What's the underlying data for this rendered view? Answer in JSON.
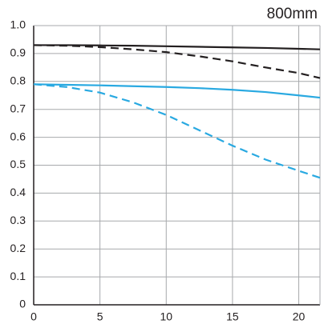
{
  "chart_data": {
    "type": "line",
    "title": "800mm",
    "x": [
      0,
      2.5,
      5,
      7.5,
      10,
      12.5,
      15,
      17.5,
      20,
      21.6
    ],
    "series": [
      {
        "color": "#231f20",
        "dashed": false,
        "values": [
          0.93,
          0.93,
          0.929,
          0.928,
          0.926,
          0.924,
          0.922,
          0.92,
          0.917,
          0.915
        ]
      },
      {
        "color": "#231f20",
        "dashed": true,
        "values": [
          0.93,
          0.928,
          0.923,
          0.915,
          0.905,
          0.89,
          0.872,
          0.85,
          0.83,
          0.812
        ]
      },
      {
        "color": "#29a9e1",
        "dashed": false,
        "values": [
          0.79,
          0.788,
          0.786,
          0.783,
          0.78,
          0.776,
          0.77,
          0.762,
          0.75,
          0.742
        ]
      },
      {
        "color": "#29a9e1",
        "dashed": true,
        "values": [
          0.79,
          0.78,
          0.76,
          0.725,
          0.68,
          0.625,
          0.57,
          0.52,
          0.48,
          0.455
        ]
      }
    ],
    "xlim": [
      0,
      21.6
    ],
    "xticks": [
      0,
      5,
      10,
      15,
      20
    ],
    "ylim": [
      0,
      1
    ],
    "yticks": [
      0,
      0.1,
      0.2,
      0.3,
      0.4,
      0.5,
      0.6,
      0.7,
      0.8,
      0.9,
      {
        "value": 1,
        "label": "1.0"
      }
    ],
    "grid": true
  }
}
